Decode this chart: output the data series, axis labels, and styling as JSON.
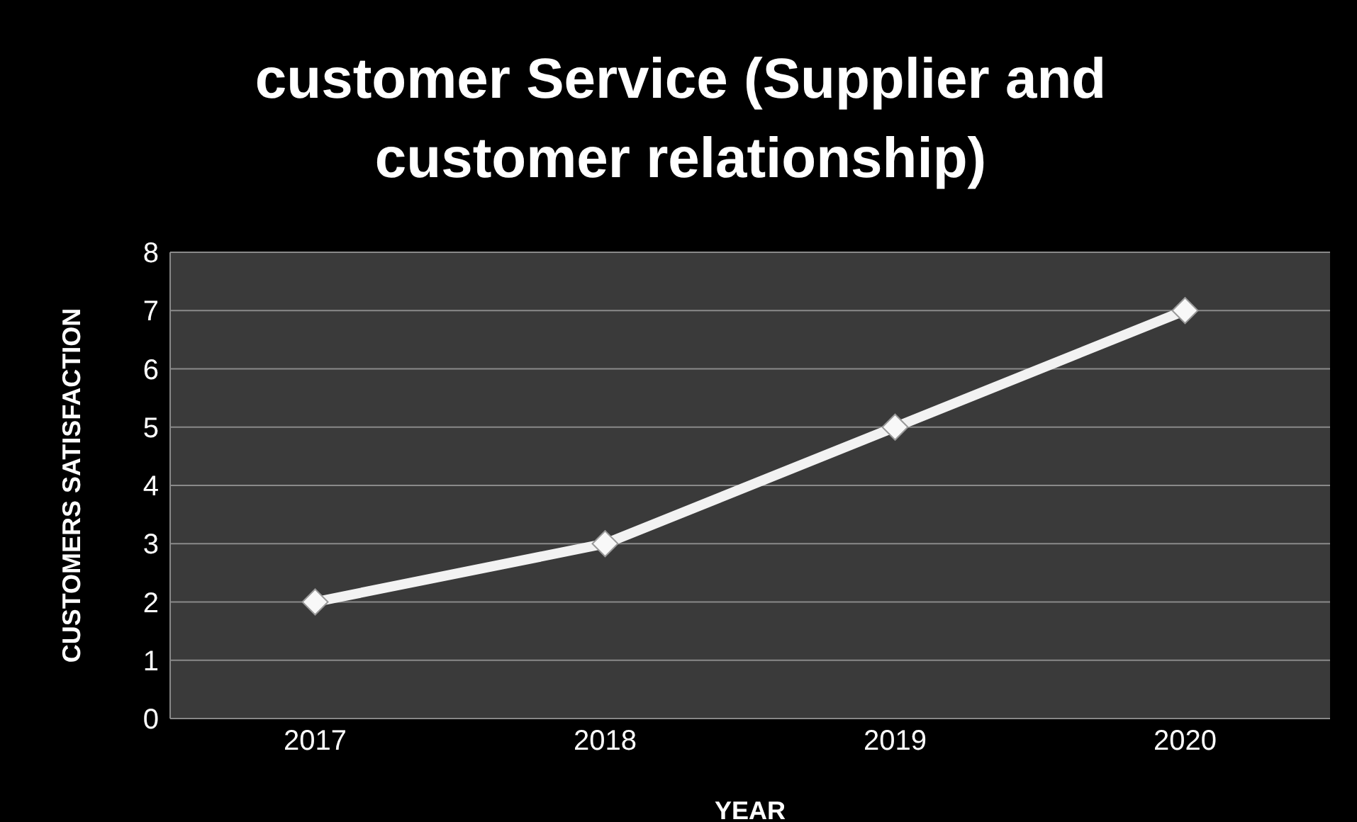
{
  "chart_data": {
    "type": "line",
    "title": "customer Service (Supplier and customer relationship)",
    "xlabel": "YEAR",
    "ylabel": "CUSTOMERS SATISFACTION",
    "categories": [
      "2017",
      "2018",
      "2019",
      "2020"
    ],
    "series": [
      {
        "color": "#f2f2f2",
        "values": [
          2,
          3,
          5,
          7
        ]
      }
    ],
    "ylim": [
      0,
      8
    ],
    "yticks": [
      0,
      1,
      2,
      3,
      4,
      5,
      6,
      7,
      8
    ],
    "grid": "y",
    "legend": false,
    "marker": "diamond",
    "line_style": "solid"
  }
}
